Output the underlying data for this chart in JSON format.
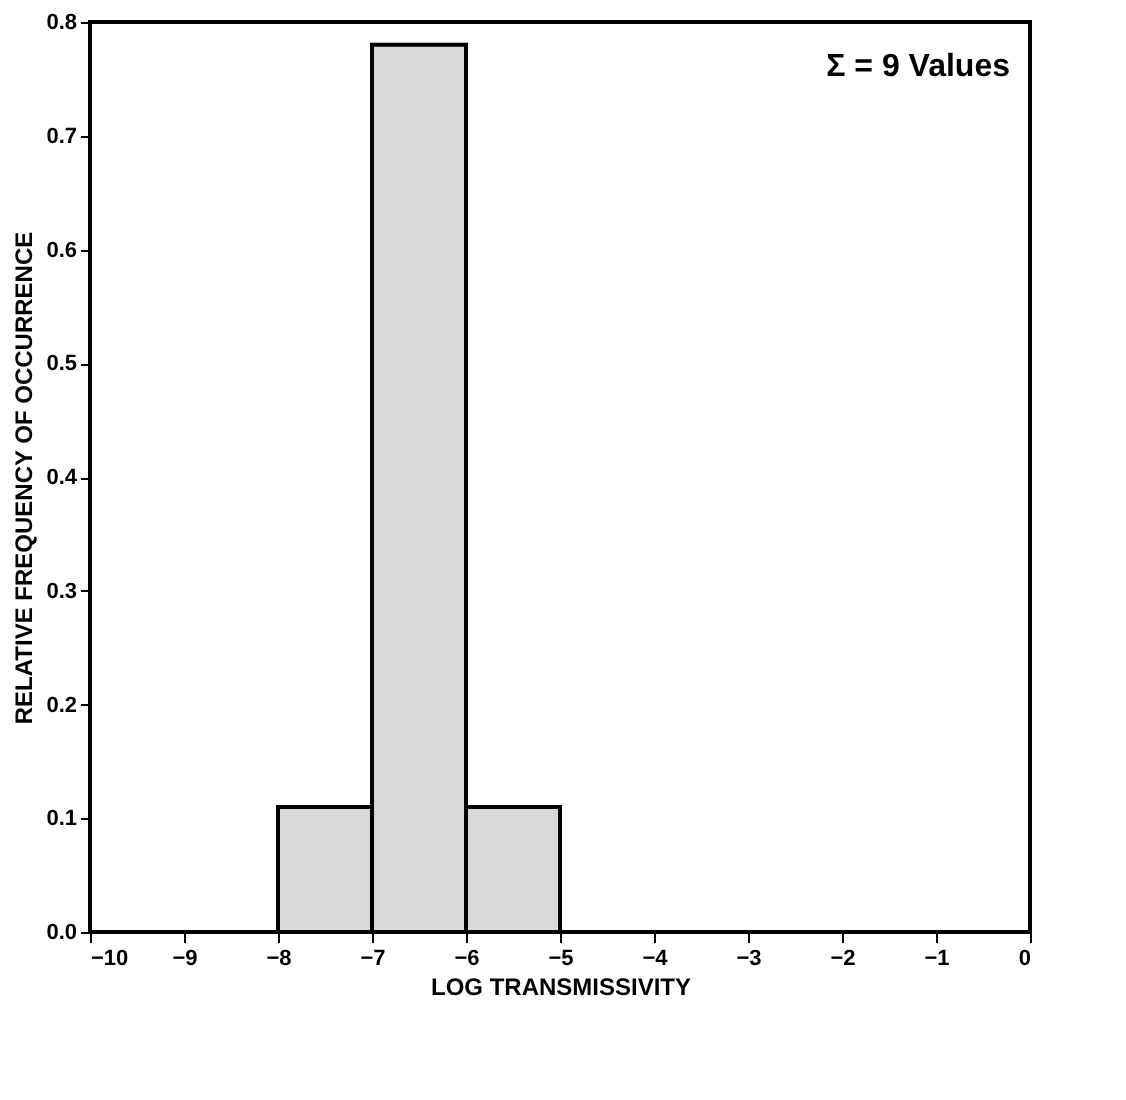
{
  "chart_data": {
    "type": "histogram",
    "xlabel": "LOG TRANSMISSIVITY",
    "ylabel": "RELATIVE FREQUENCY OF OCCURRENCE",
    "bins": [
      -8,
      -7,
      -6,
      -5
    ],
    "values": [
      0.11,
      0.78,
      0.11
    ],
    "color": "#d9d9d9",
    "xlim": [
      -10,
      0
    ],
    "xticks": [
      -10,
      -9,
      -8,
      -7,
      -6,
      -5,
      -4,
      -3,
      -2,
      -1,
      0
    ],
    "ylim": [
      0,
      0.8
    ],
    "yticks": [
      {
        "value": 0,
        "label": "0.0"
      },
      {
        "value": 0.1,
        "label": "0.1"
      },
      {
        "value": 0.2,
        "label": "0.2"
      },
      {
        "value": 0.3,
        "label": "0.3"
      },
      {
        "value": 0.4,
        "label": "0.4"
      },
      {
        "value": 0.5,
        "label": "0.5"
      },
      {
        "value": 0.6,
        "label": "0.6"
      },
      {
        "value": 0.7,
        "label": "0.7"
      },
      {
        "value": 0.8,
        "label": "0.8"
      }
    ],
    "annotations": [
      "Σ = 9 Values"
    ],
    "grid": false
  }
}
